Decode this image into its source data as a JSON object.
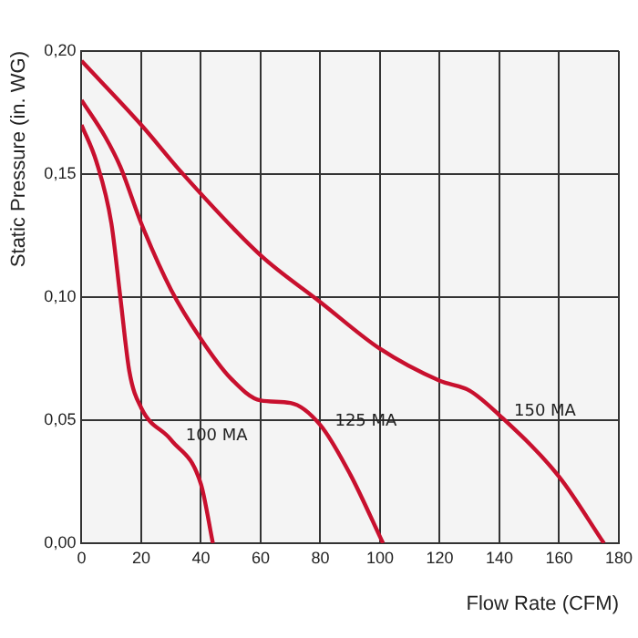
{
  "chart_data": {
    "type": "line",
    "xlabel": "Flow Rate (CFM)",
    "ylabel": "Static Pressure (in. WG)",
    "xlim": [
      0,
      180
    ],
    "xticks": [
      0,
      20,
      40,
      60,
      80,
      100,
      120,
      140,
      160,
      180
    ],
    "ylim": [
      0,
      0.2
    ],
    "yticks": [
      {
        "value": 0,
        "label": "0,00"
      },
      {
        "value": 0.05,
        "label": "0,05"
      },
      {
        "value": 0.1,
        "label": "0,10"
      },
      {
        "value": 0.15,
        "label": "0,15"
      },
      {
        "value": 0.2,
        "label": "0,20"
      }
    ],
    "grid": true,
    "legend": false,
    "marker": "none",
    "line_style": "solid",
    "series": [
      {
        "name": "150 MA",
        "color": "#c8102e",
        "x": [
          0,
          20,
          34,
          60,
          80,
          100,
          120,
          130,
          140,
          160,
          175
        ],
        "values": [
          0.196,
          0.17,
          0.15,
          0.117,
          0.098,
          0.079,
          0.066,
          0.062,
          0.052,
          0.027,
          0
        ]
      },
      {
        "name": "125 MA",
        "color": "#c8102e",
        "x": [
          0,
          8,
          13,
          20,
          30,
          40,
          50,
          60,
          70,
          80,
          90,
          101
        ],
        "values": [
          0.18,
          0.165,
          0.153,
          0.13,
          0.103,
          0.083,
          0.067,
          0.058,
          0.057,
          0.048,
          0.028,
          0
        ]
      },
      {
        "name": "100 MA",
        "color": "#c8102e",
        "x": [
          0,
          5,
          10,
          13,
          16,
          20,
          30,
          40,
          44
        ],
        "values": [
          0.17,
          0.155,
          0.13,
          0.1,
          0.07,
          0.055,
          0.042,
          0.024,
          0
        ]
      }
    ]
  }
}
